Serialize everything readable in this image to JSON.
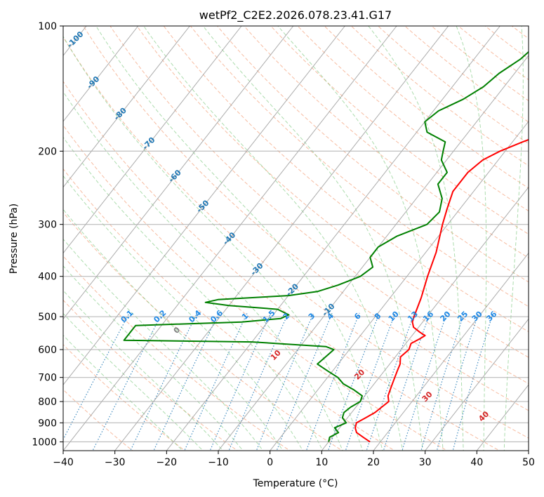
{
  "chart_data": {
    "type": "line",
    "title": "wetPf2_C2E2.2026.078.23.41.G17",
    "xlabel": "Temperature (°C)",
    "ylabel": "Pressure (hPa)",
    "xlim": [
      -40,
      50
    ],
    "ylim": [
      1050,
      100
    ],
    "y_scale": "log",
    "grid": true,
    "x_ticks": [
      -40,
      -30,
      -20,
      -10,
      0,
      10,
      20,
      30,
      40,
      50
    ],
    "y_ticks": [
      100,
      200,
      300,
      400,
      500,
      600,
      700,
      800,
      900,
      1000
    ],
    "series": [
      {
        "color": "#ff0000",
        "points": [
          [
            18.0,
            1000
          ],
          [
            16.0,
            975
          ],
          [
            14.0,
            950
          ],
          [
            13.0,
            925
          ],
          [
            12.5,
            900
          ],
          [
            13.5,
            875
          ],
          [
            14.5,
            850
          ],
          [
            15.0,
            825
          ],
          [
            15.5,
            800
          ],
          [
            14.5,
            775
          ],
          [
            14.0,
            750
          ],
          [
            13.5,
            725
          ],
          [
            13.0,
            700
          ],
          [
            12.5,
            675
          ],
          [
            12.0,
            650
          ],
          [
            11.0,
            625
          ],
          [
            11.5,
            600
          ],
          [
            11.0,
            580
          ],
          [
            12.0,
            565
          ],
          [
            12.5,
            555
          ],
          [
            11.0,
            545
          ],
          [
            9.0,
            530
          ],
          [
            8.0,
            515
          ],
          [
            7.5,
            500
          ],
          [
            6.0,
            450
          ],
          [
            4.0,
            400
          ],
          [
            2.0,
            350
          ],
          [
            -1.0,
            300
          ],
          [
            -2.5,
            275
          ],
          [
            -4.0,
            250
          ],
          [
            -4.0,
            225
          ],
          [
            -3.0,
            210
          ],
          [
            -1.0,
            200
          ],
          [
            2.0,
            190
          ],
          [
            5.5,
            180
          ],
          [
            8.0,
            170
          ],
          [
            10.0,
            160
          ],
          [
            12.0,
            150
          ],
          [
            14.0,
            140
          ],
          [
            16.0,
            130
          ],
          [
            18.0,
            120
          ],
          [
            20.0,
            110
          ],
          [
            22.0,
            100
          ]
        ]
      },
      {
        "color": "#008000",
        "points": [
          [
            10.0,
            1000
          ],
          [
            9.5,
            975
          ],
          [
            10.5,
            950
          ],
          [
            9.0,
            925
          ],
          [
            10.5,
            900
          ],
          [
            9.0,
            875
          ],
          [
            8.5,
            850
          ],
          [
            9.0,
            825
          ],
          [
            10.0,
            800
          ],
          [
            9.5,
            775
          ],
          [
            7.0,
            750
          ],
          [
            4.0,
            725
          ],
          [
            2.0,
            700
          ],
          [
            -1.0,
            675
          ],
          [
            -4.0,
            650
          ],
          [
            -3.5,
            625
          ],
          [
            -3.0,
            600
          ],
          [
            -5.0,
            590
          ],
          [
            -20.0,
            575
          ],
          [
            -45.0,
            570
          ],
          [
            -45.0,
            525
          ],
          [
            -25.0,
            515
          ],
          [
            -18.0,
            505
          ],
          [
            -17.0,
            495
          ],
          [
            -20.0,
            480
          ],
          [
            -30.0,
            470
          ],
          [
            -35.0,
            462
          ],
          [
            -33.0,
            455
          ],
          [
            -20.0,
            445
          ],
          [
            -15.0,
            435
          ],
          [
            -12.0,
            420
          ],
          [
            -9.0,
            400
          ],
          [
            -8.0,
            380
          ],
          [
            -10.0,
            360
          ],
          [
            -10.0,
            340
          ],
          [
            -8.0,
            320
          ],
          [
            -4.0,
            300
          ],
          [
            -3.5,
            280
          ],
          [
            -5.0,
            260
          ],
          [
            -8.0,
            240
          ],
          [
            -8.0,
            225
          ],
          [
            -11.0,
            210
          ],
          [
            -12.0,
            200
          ],
          [
            -13.0,
            190
          ],
          [
            -18.0,
            180
          ],
          [
            -20.0,
            170
          ],
          [
            -19.0,
            160
          ],
          [
            -16.0,
            150
          ],
          [
            -14.0,
            140
          ],
          [
            -13.0,
            130
          ],
          [
            -11.0,
            120
          ],
          [
            -10.0,
            110
          ],
          [
            -8.0,
            100
          ]
        ]
      }
    ],
    "annotations": {
      "isotherm_labels": [
        "-100",
        "-90",
        "-80",
        "-70",
        "-60",
        "-50",
        "-40",
        "-30",
        "-20",
        "-10"
      ],
      "mixing_ratio_labels": [
        "0.1",
        "0.2",
        "0.4",
        "0.6",
        "1",
        "1.5",
        "2",
        "3",
        "4",
        "6",
        "8",
        "10",
        "13",
        "16",
        "20",
        "25",
        "30",
        "36"
      ],
      "moist_adiabat_labels": [
        "0",
        "10",
        "20",
        "30",
        "40"
      ]
    },
    "colors": {
      "isotherm_label": "#1f77b4",
      "mixing_ratio_label": "#1e88e5",
      "moist_adiabat_label_zero": "#808080",
      "moist_adiabat_label": "#d62728"
    }
  }
}
